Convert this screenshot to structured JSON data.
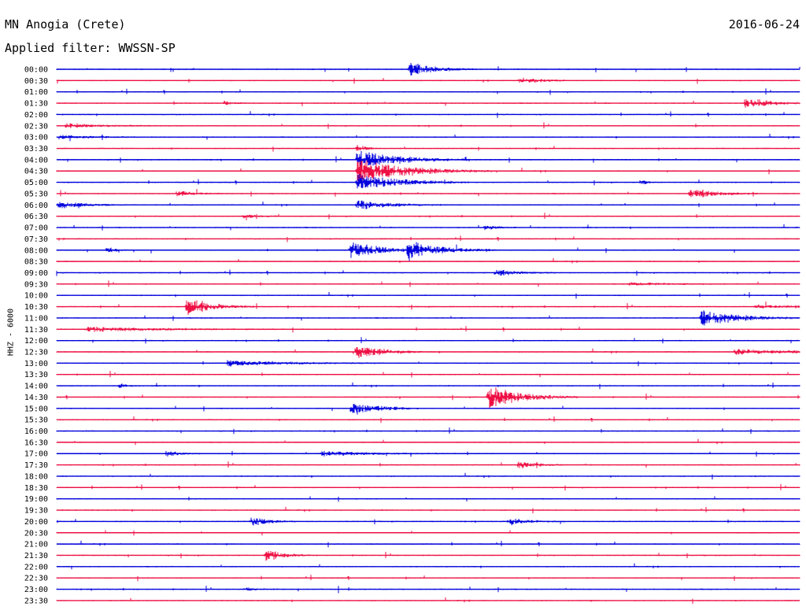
{
  "header": {
    "station": "MN Anogia (Crete)",
    "date": "2016-06-24",
    "filter": "Applied filter: WWSSN-SP",
    "channel": "HHZ - 6000"
  },
  "colors": {
    "even_trace": "#0000dd",
    "odd_trace": "#ee1044",
    "background": "#ffffff",
    "text": "#000000"
  },
  "chart_data": {
    "type": "helicorder",
    "title": "MN Anogia (Crete)",
    "subtitle": "Applied filter: WWSSN-SP",
    "ylabel": "HHZ - 6000",
    "date": "2016-06-24",
    "row_labels": [
      "00:00",
      "00:30",
      "01:00",
      "01:30",
      "02:00",
      "02:30",
      "03:00",
      "03:30",
      "04:00",
      "04:30",
      "05:00",
      "05:30",
      "06:00",
      "06:30",
      "07:00",
      "07:30",
      "08:00",
      "08:30",
      "09:00",
      "09:30",
      "10:00",
      "10:30",
      "11:00",
      "11:30",
      "12:00",
      "12:30",
      "13:00",
      "13:30",
      "14:00",
      "14:30",
      "15:00",
      "15:30",
      "16:00",
      "16:30",
      "17:00",
      "17:30",
      "18:00",
      "18:30",
      "19:00",
      "19:30",
      "20:00",
      "20:30",
      "21:00",
      "21:30",
      "22:00",
      "22:30",
      "23:00",
      "23:30"
    ],
    "row_minutes": 30,
    "x_unit": "fraction of row window",
    "events": [
      {
        "row": 0,
        "at": 0.476,
        "amp": 1.5,
        "dur": 0.03
      },
      {
        "row": 1,
        "at": 0.623,
        "amp": 0.7,
        "dur": 0.025
      },
      {
        "row": 3,
        "at": 0.226,
        "amp": 0.45,
        "dur": 0.01
      },
      {
        "row": 3,
        "at": 0.927,
        "amp": 1.2,
        "dur": 0.03
      },
      {
        "row": 5,
        "at": 0.013,
        "amp": 0.55,
        "dur": 0.04
      },
      {
        "row": 6,
        "at": 0.003,
        "amp": 0.4,
        "dur": 0.04
      },
      {
        "row": 7,
        "at": 0.405,
        "amp": 0.8,
        "dur": 0.01
      },
      {
        "row": 8,
        "at": 0.405,
        "amp": 2.2,
        "dur": 0.05
      },
      {
        "row": 9,
        "at": 0.405,
        "amp": 2.6,
        "dur": 0.06
      },
      {
        "row": 10,
        "at": 0.405,
        "amp": 2.0,
        "dur": 0.05
      },
      {
        "row": 10,
        "at": 0.786,
        "amp": 0.5,
        "dur": 0.01
      },
      {
        "row": 11,
        "at": 0.162,
        "amp": 0.6,
        "dur": 0.02
      },
      {
        "row": 11,
        "at": 0.853,
        "amp": 1.3,
        "dur": 0.03
      },
      {
        "row": 12,
        "at": 0.003,
        "amp": 0.8,
        "dur": 0.03
      },
      {
        "row": 12,
        "at": 0.405,
        "amp": 1.1,
        "dur": 0.04
      },
      {
        "row": 13,
        "at": 0.252,
        "amp": 0.4,
        "dur": 0.02
      },
      {
        "row": 14,
        "at": 0.576,
        "amp": 0.6,
        "dur": 0.015
      },
      {
        "row": 16,
        "at": 0.395,
        "amp": 1.8,
        "dur": 0.04
      },
      {
        "row": 16,
        "at": 0.473,
        "amp": 1.9,
        "dur": 0.04
      },
      {
        "row": 16,
        "at": 0.068,
        "amp": 0.7,
        "dur": 0.01
      },
      {
        "row": 18,
        "at": 0.591,
        "amp": 0.7,
        "dur": 0.03
      },
      {
        "row": 19,
        "at": 0.77,
        "amp": 0.35,
        "dur": 0.05
      },
      {
        "row": 21,
        "at": 0.175,
        "amp": 1.9,
        "dur": 0.03
      },
      {
        "row": 21,
        "at": 0.941,
        "amp": 0.35,
        "dur": 0.04
      },
      {
        "row": 22,
        "at": 0.868,
        "amp": 1.7,
        "dur": 0.045
      },
      {
        "row": 23,
        "at": 0.04,
        "amp": 0.5,
        "dur": 0.09
      },
      {
        "row": 25,
        "at": 0.401,
        "amp": 1.9,
        "dur": 0.03
      },
      {
        "row": 25,
        "at": 0.913,
        "amp": 0.6,
        "dur": 0.07
      },
      {
        "row": 26,
        "at": 0.23,
        "amp": 0.6,
        "dur": 0.07
      },
      {
        "row": 28,
        "at": 0.085,
        "amp": 0.45,
        "dur": 0.01
      },
      {
        "row": 29,
        "at": 0.581,
        "amp": 2.6,
        "dur": 0.04
      },
      {
        "row": 30,
        "at": 0.397,
        "amp": 1.5,
        "dur": 0.03
      },
      {
        "row": 34,
        "at": 0.148,
        "amp": 0.7,
        "dur": 0.015
      },
      {
        "row": 34,
        "at": 0.357,
        "amp": 0.5,
        "dur": 0.06
      },
      {
        "row": 35,
        "at": 0.622,
        "amp": 0.8,
        "dur": 0.02
      },
      {
        "row": 40,
        "at": 0.262,
        "amp": 1.2,
        "dur": 0.02
      },
      {
        "row": 40,
        "at": 0.61,
        "amp": 0.7,
        "dur": 0.025
      },
      {
        "row": 43,
        "at": 0.282,
        "amp": 1.3,
        "dur": 0.02
      },
      {
        "row": 46,
        "at": 0.254,
        "amp": 0.3,
        "dur": 0.015
      }
    ]
  }
}
